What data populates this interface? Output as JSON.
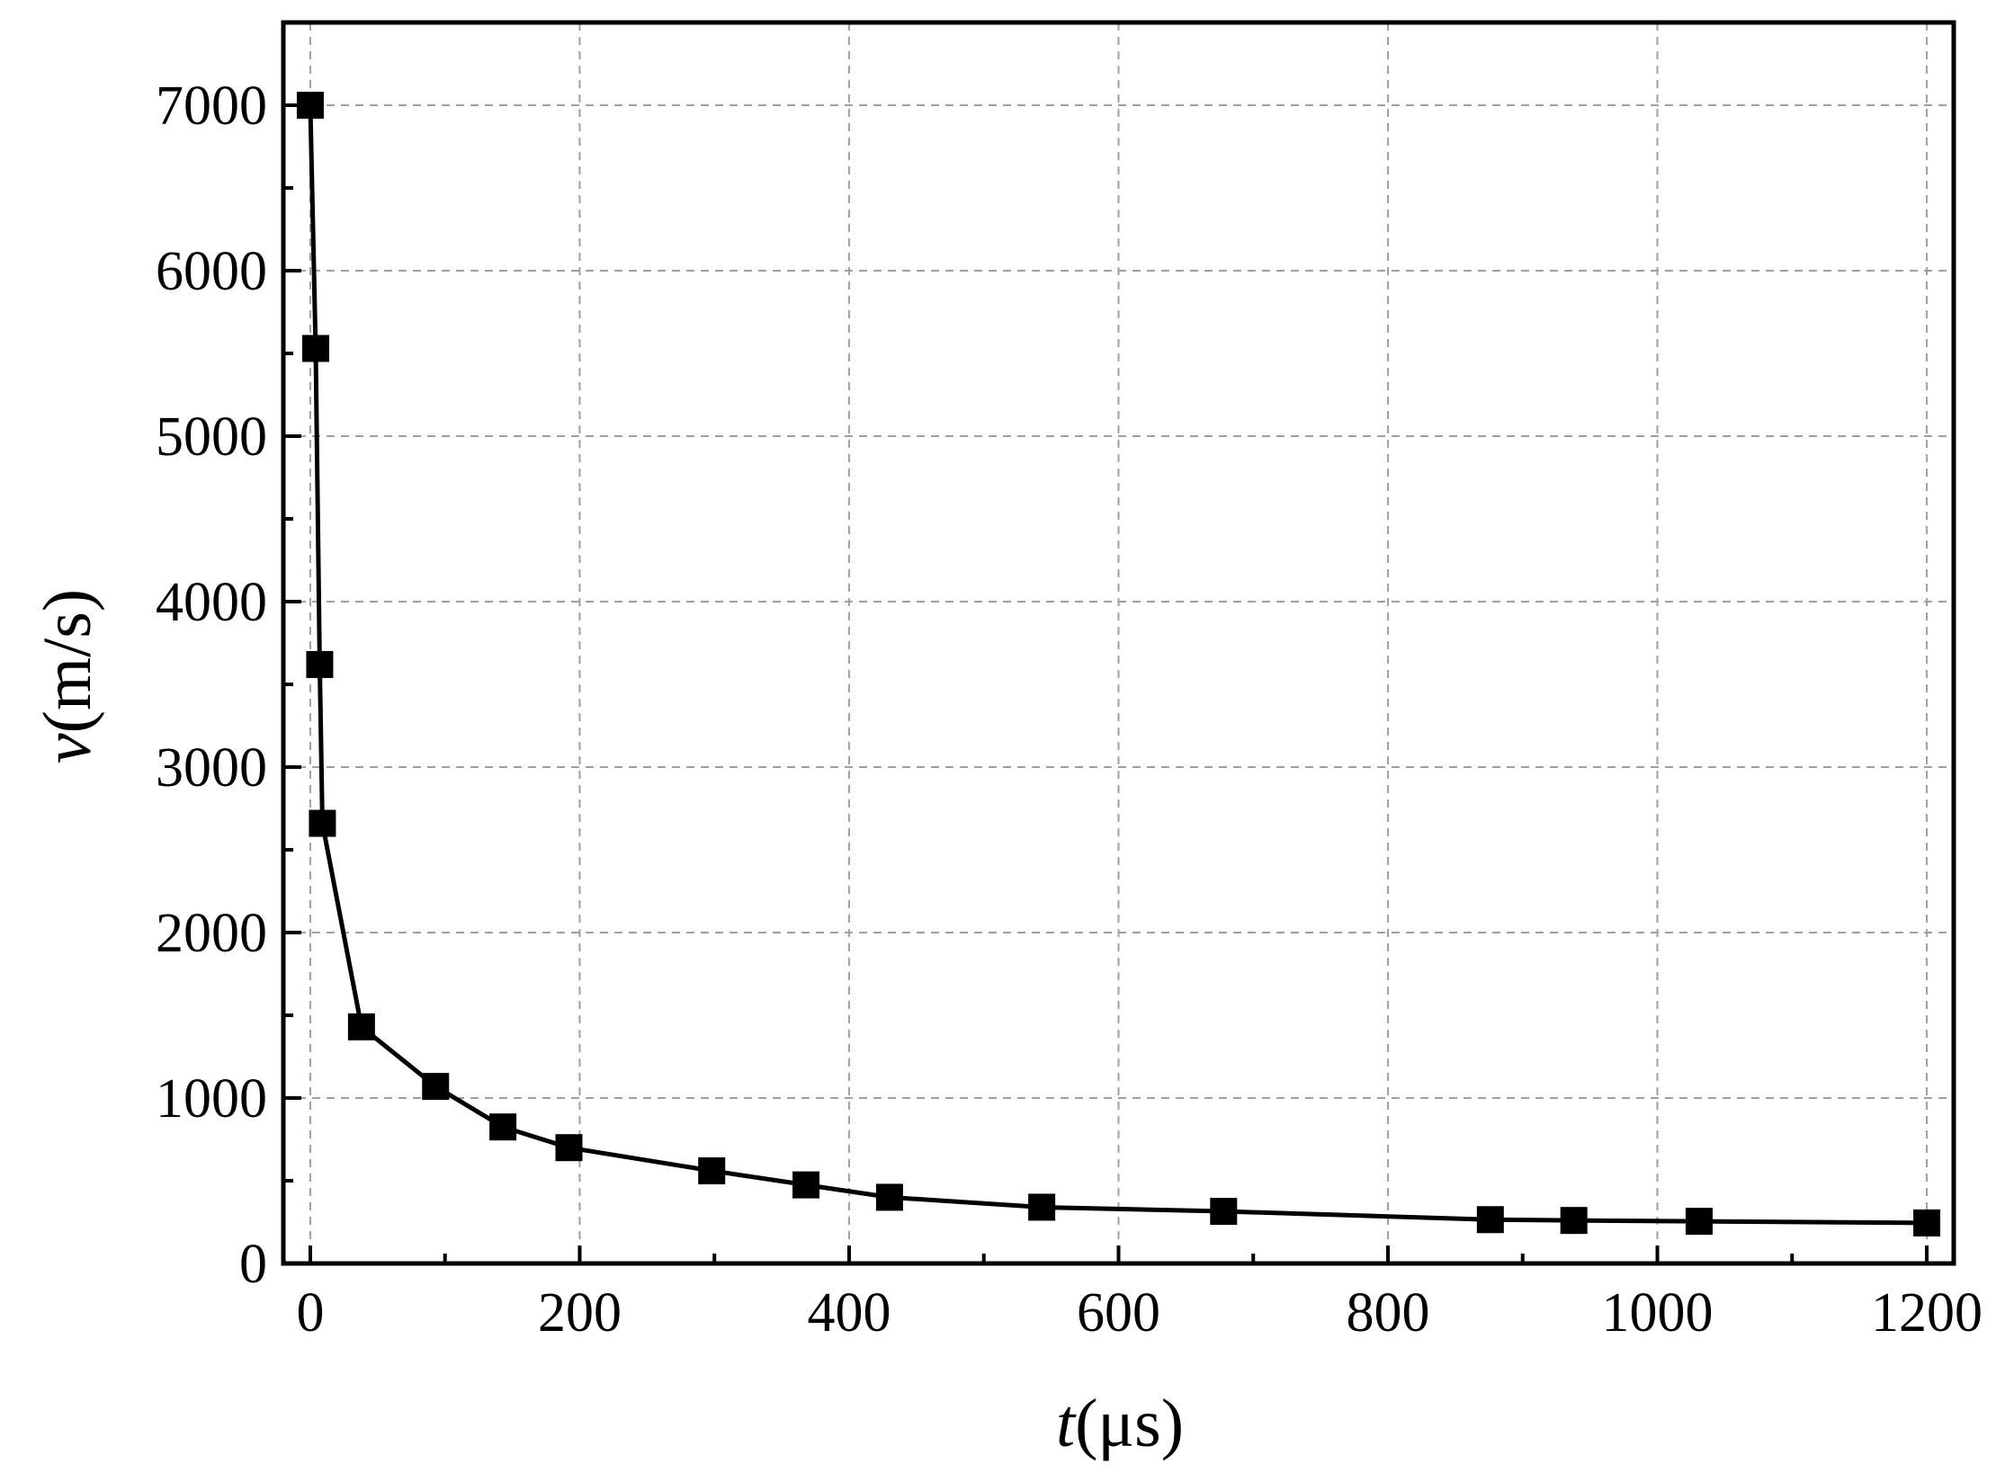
{
  "chart_data": {
    "type": "line",
    "xlabel_var": "t",
    "xlabel_unit": "(μs)",
    "ylabel_var": "v",
    "ylabel_unit": "(m/s)",
    "xlim": [
      -20,
      1220
    ],
    "ylim": [
      0,
      7500
    ],
    "xticks": [
      0,
      200,
      400,
      600,
      800,
      1000,
      1200
    ],
    "yticks": [
      0,
      1000,
      2000,
      3000,
      4000,
      5000,
      6000,
      7000
    ],
    "x_minor_step": 100,
    "y_minor_step": 500,
    "grid": true,
    "marker": "square",
    "line_color": "#000000",
    "grid_color": "#a0a0a0",
    "series": [
      {
        "x": [
          0,
          4,
          7,
          9,
          38,
          93,
          143,
          192,
          298,
          368,
          430,
          543,
          678,
          876,
          938,
          1031,
          1200
        ],
        "y": [
          7000,
          5530,
          3620,
          2660,
          1430,
          1070,
          825,
          700,
          560,
          475,
          400,
          340,
          315,
          265,
          260,
          255,
          245
        ]
      }
    ]
  }
}
